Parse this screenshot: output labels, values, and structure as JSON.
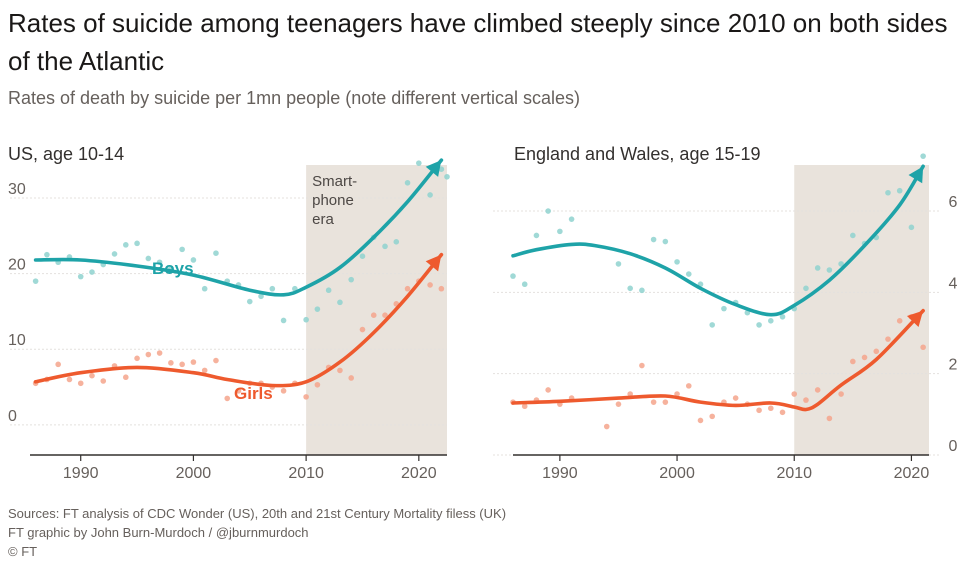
{
  "header": {
    "title": "Rates of suicide among teenagers have climbed steeply since 2010 on both sides of the Atlantic",
    "subtitle": "Rates of death by suicide per 1mn people (note different vertical scales)"
  },
  "footer": {
    "sources": "Sources: FT analysis of CDC Wonder (US), 20th and 21st Century Mortality filess (UK)",
    "credit": "FT graphic by John Burn-Murdoch / @jburnmurdoch",
    "copyright": "© FT"
  },
  "colors": {
    "boys": "#1ea3a8",
    "boys_points": "#8fd2cf",
    "girls": "#ee5a2e",
    "girls_points": "#f4a58c",
    "shade": "#e9e3dc",
    "axis_text": "#66605c",
    "grid": "#e4e1de"
  },
  "chart_data": [
    {
      "type": "scatter",
      "title": "US, age 10-14",
      "annotation": "Smart-\nphone\nera",
      "shaded_range": [
        2010,
        2022.5
      ],
      "xlim": [
        1985.5,
        2022.5
      ],
      "ylim": [
        -2,
        37
      ],
      "x_ticks": [
        1990,
        2000,
        2010,
        2020
      ],
      "y_ticks": [
        0,
        10,
        20,
        30
      ],
      "y_axis_side": "left",
      "series": [
        {
          "name": "Boys",
          "points": [
            [
              1986,
              19
            ],
            [
              1987,
              22.5
            ],
            [
              1988,
              21.5
            ],
            [
              1989,
              22.2
            ],
            [
              1990,
              19.6
            ],
            [
              1991,
              20.2
            ],
            [
              1992,
              21.2
            ],
            [
              1993,
              22.6
            ],
            [
              1994,
              23.8
            ],
            [
              1995,
              24
            ],
            [
              1996,
              22
            ],
            [
              1997,
              21.5
            ],
            [
              1998,
              20.7
            ],
            [
              1999,
              23.2
            ],
            [
              2000,
              21.8
            ],
            [
              2001,
              18
            ],
            [
              2002,
              22.7
            ],
            [
              2003,
              19
            ],
            [
              2004,
              18.5
            ],
            [
              2005,
              16.3
            ],
            [
              2006,
              17
            ],
            [
              2007,
              18
            ],
            [
              2008,
              13.8
            ],
            [
              2009,
              18
            ],
            [
              2010,
              13.9
            ],
            [
              2011,
              15.3
            ],
            [
              2012,
              17.8
            ],
            [
              2013,
              16.2
            ],
            [
              2014,
              19.2
            ],
            [
              2015,
              22.3
            ],
            [
              2016,
              24.8
            ],
            [
              2017,
              23.6
            ],
            [
              2018,
              24.2
            ],
            [
              2019,
              32
            ],
            [
              2020,
              34.6
            ],
            [
              2021,
              30.4
            ],
            [
              2022,
              33.8
            ],
            [
              2022.5,
              32.8
            ]
          ],
          "trend": [
            [
              1986,
              21.8
            ],
            [
              1990,
              21.8
            ],
            [
              1995,
              21
            ],
            [
              2000,
              19.8
            ],
            [
              2005,
              17.8
            ],
            [
              2008,
              17.2
            ],
            [
              2010,
              18.2
            ],
            [
              2013,
              20.8
            ],
            [
              2016,
              24.8
            ],
            [
              2019,
              29.5
            ],
            [
              2022,
              35
            ]
          ]
        },
        {
          "name": "Girls",
          "points": [
            [
              1986,
              5.5
            ],
            [
              1987,
              6
            ],
            [
              1988,
              8
            ],
            [
              1989,
              6
            ],
            [
              1990,
              5.5
            ],
            [
              1991,
              6.5
            ],
            [
              1992,
              5.8
            ],
            [
              1993,
              7.8
            ],
            [
              1994,
              6.3
            ],
            [
              1995,
              8.8
            ],
            [
              1996,
              9.3
            ],
            [
              1997,
              9.5
            ],
            [
              1998,
              8.2
            ],
            [
              1999,
              8
            ],
            [
              2000,
              8.3
            ],
            [
              2001,
              7.2
            ],
            [
              2002,
              8.5
            ],
            [
              2003,
              3.5
            ],
            [
              2004,
              4.5
            ],
            [
              2005,
              5.5
            ],
            [
              2006,
              5.5
            ],
            [
              2007,
              5
            ],
            [
              2008,
              4.5
            ],
            [
              2009,
              5.5
            ],
            [
              2010,
              3.7
            ],
            [
              2011,
              5.3
            ],
            [
              2012,
              7.6
            ],
            [
              2013,
              7.2
            ],
            [
              2014,
              6.2
            ],
            [
              2015,
              12.6
            ],
            [
              2016,
              14.5
            ],
            [
              2017,
              14.5
            ],
            [
              2018,
              16
            ],
            [
              2019,
              18
            ],
            [
              2020,
              19
            ],
            [
              2021,
              18.5
            ],
            [
              2022,
              18
            ]
          ],
          "trend": [
            [
              1986,
              5.7
            ],
            [
              1990,
              6.9
            ],
            [
              1995,
              7.6
            ],
            [
              2000,
              6.9
            ],
            [
              2003,
              6
            ],
            [
              2007,
              5.2
            ],
            [
              2010,
              5.7
            ],
            [
              2013,
              8.3
            ],
            [
              2016,
              12.2
            ],
            [
              2019,
              17
            ],
            [
              2022,
              22.5
            ]
          ]
        }
      ],
      "labels": {
        "boys": "Boys",
        "girls": "Girls"
      }
    },
    {
      "type": "scatter",
      "title": "England and Wales, age 15-19",
      "shaded_range": [
        2010,
        2021.5
      ],
      "xlim": [
        1986,
        2021.5
      ],
      "ylim": [
        0,
        7.6
      ],
      "x_ticks": [
        1990,
        2000,
        2010,
        2020
      ],
      "y_ticks": [
        0,
        2,
        4,
        6
      ],
      "y_axis_side": "right",
      "series": [
        {
          "name": "Boys",
          "points": [
            [
              1986,
              4.4
            ],
            [
              1987,
              4.2
            ],
            [
              1988,
              5.4
            ],
            [
              1989,
              6
            ],
            [
              1990,
              5.5
            ],
            [
              1991,
              5.8
            ],
            [
              1995,
              4.7
            ],
            [
              1996,
              4.1
            ],
            [
              1997,
              4.05
            ],
            [
              1998,
              5.3
            ],
            [
              1999,
              5.25
            ],
            [
              2000,
              4.75
            ],
            [
              2001,
              4.45
            ],
            [
              2002,
              4.2
            ],
            [
              2003,
              3.2
            ],
            [
              2004,
              3.6
            ],
            [
              2005,
              3.75
            ],
            [
              2006,
              3.5
            ],
            [
              2007,
              3.2
            ],
            [
              2008,
              3.3
            ],
            [
              2009,
              3.4
            ],
            [
              2010,
              3.6
            ],
            [
              2011,
              4.1
            ],
            [
              2012,
              4.6
            ],
            [
              2013,
              4.55
            ],
            [
              2014,
              4.7
            ],
            [
              2015,
              5.4
            ],
            [
              2016,
              5.2
            ],
            [
              2017,
              5.35
            ],
            [
              2018,
              6.45
            ],
            [
              2019,
              6.5
            ],
            [
              2020,
              5.6
            ],
            [
              2021,
              7.35
            ]
          ],
          "trend": [
            [
              1986,
              4.9
            ],
            [
              1988,
              5.05
            ],
            [
              1991,
              5.18
            ],
            [
              1993,
              5.15
            ],
            [
              1996,
              4.95
            ],
            [
              1999,
              4.6
            ],
            [
              2002,
              4.1
            ],
            [
              2005,
              3.7
            ],
            [
              2008,
              3.45
            ],
            [
              2010,
              3.68
            ],
            [
              2013,
              4.3
            ],
            [
              2016,
              5.15
            ],
            [
              2019,
              6.15
            ],
            [
              2021,
              7.1
            ]
          ]
        },
        {
          "name": "Girls",
          "points": [
            [
              1986,
              1.3
            ],
            [
              1987,
              1.2
            ],
            [
              1988,
              1.35
            ],
            [
              1989,
              1.6
            ],
            [
              1990,
              1.25
            ],
            [
              1991,
              1.4
            ],
            [
              1994,
              0.7
            ],
            [
              1995,
              1.25
            ],
            [
              1996,
              1.5
            ],
            [
              1997,
              2.2
            ],
            [
              1998,
              1.3
            ],
            [
              1999,
              1.3
            ],
            [
              2000,
              1.5
            ],
            [
              2001,
              1.7
            ],
            [
              2002,
              0.85
            ],
            [
              2003,
              0.95
            ],
            [
              2004,
              1.3
            ],
            [
              2005,
              1.4
            ],
            [
              2006,
              1.25
            ],
            [
              2007,
              1.1
            ],
            [
              2008,
              1.15
            ],
            [
              2009,
              1.05
            ],
            [
              2010,
              1.5
            ],
            [
              2011,
              1.35
            ],
            [
              2012,
              1.6
            ],
            [
              2013,
              0.9
            ],
            [
              2014,
              1.5
            ],
            [
              2015,
              2.3
            ],
            [
              2016,
              2.4
            ],
            [
              2017,
              2.55
            ],
            [
              2018,
              2.85
            ],
            [
              2019,
              3.3
            ],
            [
              2020,
              3.4
            ],
            [
              2021,
              2.65
            ]
          ],
          "trend": [
            [
              1986,
              1.28
            ],
            [
              1990,
              1.32
            ],
            [
              1995,
              1.4
            ],
            [
              1999,
              1.45
            ],
            [
              2002,
              1.3
            ],
            [
              2005,
              1.22
            ],
            [
              2008,
              1.28
            ],
            [
              2010,
              1.18
            ],
            [
              2011,
              1.12
            ],
            [
              2012,
              1.25
            ],
            [
              2014,
              1.72
            ],
            [
              2017,
              2.35
            ],
            [
              2021,
              3.55
            ]
          ]
        }
      ]
    }
  ]
}
